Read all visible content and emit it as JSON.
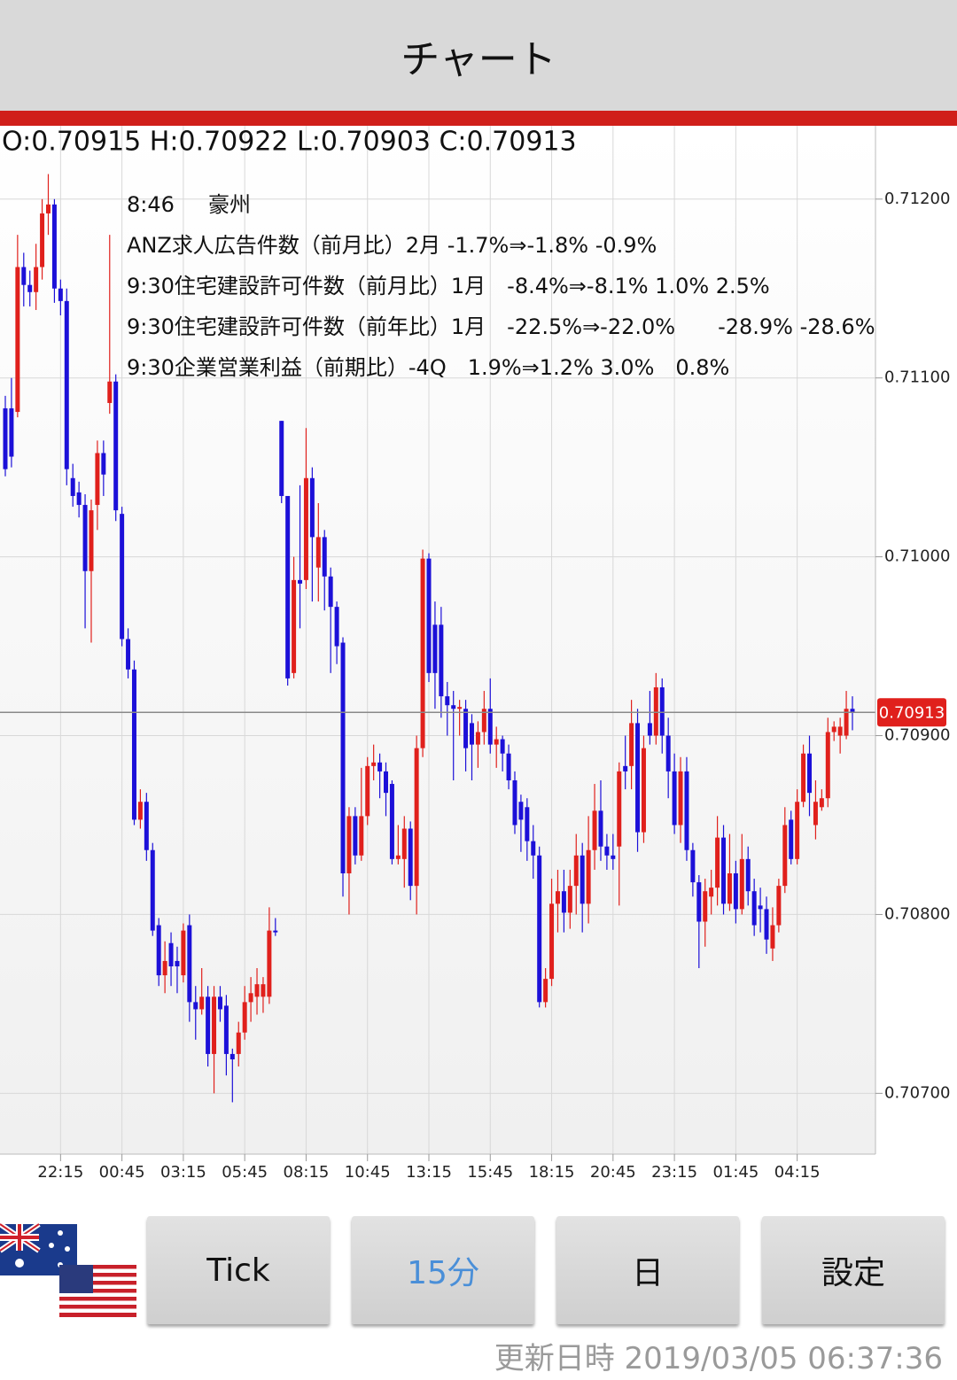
{
  "header": {
    "title": "チャート"
  },
  "chart_data": {
    "type": "candlestick",
    "ohlc_header": "O:0.70915 H:0.70922 L:0.70903 C:0.70913",
    "annotations": [
      "8:46     豪州",
      "ANZ求人広告件数（前月比）2月 -1.7%⇒-1.8% -0.9%",
      "9:30住宅建設許可件数（前月比）1月　-8.4%⇒-8.1% 1.0% 2.5%",
      "9:30住宅建設許可件数（前年比）1月　-22.5%⇒-22.0%　　-28.9% -28.6%",
      "9:30企業営業利益（前期比）-4Q　1.9%⇒1.2% 3.0%　0.8%"
    ],
    "up_color": "#e0201c",
    "down_color": "#1c10d8",
    "categories": [
      null,
      null,
      null,
      null,
      null,
      null,
      null,
      null,
      null,
      "22:15",
      null,
      null,
      null,
      null,
      null,
      null,
      null,
      null,
      null,
      "00:45",
      null,
      null,
      null,
      null,
      null,
      null,
      null,
      null,
      null,
      "03:15",
      null,
      null,
      null,
      null,
      null,
      null,
      null,
      null,
      null,
      "05:45",
      null,
      null,
      null,
      null,
      null,
      null,
      null,
      null,
      null,
      "08:15",
      null,
      null,
      null,
      null,
      null,
      null,
      null,
      null,
      null,
      "10:45",
      null,
      null,
      null,
      null,
      null,
      null,
      null,
      null,
      null,
      "13:15",
      null,
      null,
      null,
      null,
      null,
      null,
      null,
      null,
      null,
      "15:45",
      null,
      null,
      null,
      null,
      null,
      null,
      null,
      null,
      null,
      "18:15",
      null,
      null,
      null,
      null,
      null,
      null,
      null,
      null,
      null,
      "20:45",
      null,
      null,
      null,
      null,
      null,
      null,
      null,
      null,
      null,
      "23:15",
      null,
      null,
      null,
      null,
      null,
      null,
      null,
      null,
      null,
      "01:45",
      null,
      null,
      null,
      null,
      null,
      null,
      null,
      null,
      null,
      "04:15",
      null,
      null,
      null,
      null,
      null,
      null,
      null,
      null,
      null
    ],
    "open": [
      0.71083,
      0.71083,
      0.71081,
      0.71162,
      0.71152,
      0.71148,
      0.71162,
      0.71192,
      0.71197,
      0.7115,
      0.71143,
      0.71044,
      0.71036,
      0.71029,
      0.70992,
      0.71029,
      0.71058,
      0.71086,
      0.71098,
      0.71024,
      0.70954,
      0.70937,
      0.70853,
      0.70863,
      0.70836,
      0.70794,
      0.70766,
      0.70784,
      0.70774,
      0.70766,
      0.70794,
      0.70751,
      0.70747,
      0.70754,
      0.70722,
      0.70754,
      0.70749,
      0.70722,
      0.70722,
      0.70734,
      0.70751,
      0.70754,
      0.70754,
      0.70754,
      0.70791,
      0.71076,
      0.71034,
      0.70935,
      0.70987,
      0.70987,
      0.71044,
      0.70994,
      0.71011,
      0.70989,
      0.70972,
      0.70952,
      0.70823,
      0.70855,
      0.70833,
      0.70855,
      0.70883,
      0.70885,
      0.7088,
      0.70873,
      0.70831,
      0.70831,
      0.70848,
      0.70816,
      0.70893,
      0.70999,
      0.70962,
      0.70962,
      0.70922,
      0.70917,
      0.70915,
      0.70915,
      0.70907,
      0.70895,
      0.70902,
      0.70915,
      0.70895,
      0.70898,
      0.7089,
      0.70875,
      0.70863,
      0.7086,
      0.70841,
      0.70833,
      0.70751,
      0.70764,
      0.70806,
      0.70813,
      0.70801,
      0.70816,
      0.70833,
      0.70806,
      0.70836,
      0.70858,
      0.70838,
      0.70833,
      0.70838,
      0.70883,
      0.70883,
      0.70907,
      0.70846,
      0.70907,
      0.709,
      0.70927,
      0.709,
      0.7088,
      0.7085,
      0.7088,
      0.70836,
      0.70818,
      0.70796,
      0.7081,
      0.70815,
      0.70843,
      0.70806,
      0.70823,
      0.70803,
      0.70831,
      0.70813,
      0.70805,
      0.70803,
      0.70781,
      0.70794,
      0.70816,
      0.70853,
      0.70831,
      0.70863,
      0.7089,
      0.7085,
      0.7086,
      0.70865,
      0.70902,
      0.709,
      0.709,
      0.70915
    ],
    "high": [
      0.7109,
      0.711,
      0.7118,
      0.7117,
      0.7116,
      0.71175,
      0.712,
      0.71214,
      0.712,
      0.71155,
      0.7115,
      0.71052,
      0.71042,
      0.71035,
      0.71032,
      0.71065,
      0.71065,
      0.7118,
      0.71102,
      0.71028,
      0.7096,
      0.70942,
      0.7087,
      0.70868,
      0.7084,
      0.70798,
      0.70785,
      0.7079,
      0.70782,
      0.70795,
      0.708,
      0.7076,
      0.7077,
      0.7076,
      0.7076,
      0.7076,
      0.70755,
      0.70725,
      0.7074,
      0.7076,
      0.70765,
      0.7077,
      0.70765,
      0.70804,
      0.70798,
      0.71076,
      0.71034,
      0.71,
      0.7104,
      0.71072,
      0.7105,
      0.7103,
      0.71015,
      0.70994,
      0.70975,
      0.70955,
      0.7086,
      0.7086,
      0.70882,
      0.70888,
      0.70895,
      0.7089,
      0.70885,
      0.70875,
      0.7085,
      0.70855,
      0.70852,
      0.709,
      0.71004,
      0.71002,
      0.70975,
      0.70972,
      0.7093,
      0.70925,
      0.7092,
      0.7092,
      0.70912,
      0.70908,
      0.70925,
      0.70932,
      0.70905,
      0.709,
      0.70895,
      0.7088,
      0.70867,
      0.70865,
      0.7085,
      0.70838,
      0.7077,
      0.7082,
      0.70825,
      0.70825,
      0.70825,
      0.70845,
      0.7084,
      0.70855,
      0.70873,
      0.70875,
      0.70845,
      0.70845,
      0.70885,
      0.709,
      0.7092,
      0.70915,
      0.709,
      0.70925,
      0.70935,
      0.70932,
      0.7091,
      0.7089,
      0.70888,
      0.70888,
      0.7084,
      0.70822,
      0.7082,
      0.70825,
      0.70855,
      0.7085,
      0.70845,
      0.7083,
      0.70845,
      0.70838,
      0.7082,
      0.70815,
      0.7081,
      0.70804,
      0.7082,
      0.7086,
      0.70858,
      0.7087,
      0.70895,
      0.709,
      0.70875,
      0.7087,
      0.7091,
      0.70908,
      0.7091,
      0.70925,
      0.70922
    ],
    "low": [
      0.71045,
      0.7105,
      0.71078,
      0.7114,
      0.7114,
      0.71138,
      0.71155,
      0.7118,
      0.71142,
      0.71135,
      0.7104,
      0.71028,
      0.71022,
      0.7096,
      0.70952,
      0.71015,
      0.71034,
      0.7108,
      0.7102,
      0.7095,
      0.70932,
      0.7085,
      0.70848,
      0.7083,
      0.70788,
      0.7076,
      0.70756,
      0.7076,
      0.70756,
      0.70762,
      0.7074,
      0.7073,
      0.70744,
      0.70715,
      0.707,
      0.7074,
      0.7071,
      0.70695,
      0.70715,
      0.7073,
      0.7074,
      0.70744,
      0.70745,
      0.7075,
      0.70788,
      0.7103,
      0.70928,
      0.70932,
      0.7096,
      0.70982,
      0.70975,
      0.70975,
      0.7097,
      0.70935,
      0.7094,
      0.7081,
      0.708,
      0.70828,
      0.7083,
      0.7085,
      0.70875,
      0.70865,
      0.70855,
      0.70828,
      0.70828,
      0.70815,
      0.70808,
      0.708,
      0.70888,
      0.7093,
      0.70915,
      0.7091,
      0.709,
      0.70875,
      0.709,
      0.7088,
      0.70875,
      0.70882,
      0.70895,
      0.7089,
      0.70882,
      0.7088,
      0.7087,
      0.70845,
      0.70835,
      0.7083,
      0.7082,
      0.70748,
      0.70748,
      0.7076,
      0.7079,
      0.7079,
      0.70792,
      0.708,
      0.7079,
      0.70795,
      0.70825,
      0.7083,
      0.70825,
      0.70825,
      0.70805,
      0.7087,
      0.7087,
      0.70835,
      0.7084,
      0.70895,
      0.70895,
      0.7089,
      0.70865,
      0.70845,
      0.7084,
      0.7083,
      0.7081,
      0.7077,
      0.70782,
      0.708,
      0.70805,
      0.708,
      0.70802,
      0.70795,
      0.708,
      0.70805,
      0.70788,
      0.7079,
      0.70778,
      0.70774,
      0.7079,
      0.70812,
      0.70828,
      0.70828,
      0.7086,
      0.70855,
      0.70842,
      0.70858,
      0.7086,
      0.70897,
      0.7089,
      0.70898,
      0.70903
    ],
    "close": [
      0.71049,
      0.71056,
      0.71162,
      0.71152,
      0.71148,
      0.71162,
      0.71192,
      0.71197,
      0.7115,
      0.71143,
      0.71049,
      0.71034,
      0.71029,
      0.70992,
      0.71026,
      0.71058,
      0.71046,
      0.71098,
      0.71026,
      0.70954,
      0.70937,
      0.70853,
      0.70863,
      0.70836,
      0.70791,
      0.70766,
      0.70774,
      0.70771,
      0.70771,
      0.70791,
      0.70751,
      0.70747,
      0.70754,
      0.70722,
      0.70754,
      0.70747,
      0.70722,
      0.70719,
      0.70734,
      0.70751,
      0.70756,
      0.70761,
      0.70761,
      0.70791,
      0.7079,
      0.71034,
      0.70932,
      0.70987,
      0.70985,
      0.71044,
      0.71011,
      0.71011,
      0.70989,
      0.70972,
      0.7095,
      0.70823,
      0.70855,
      0.70833,
      0.70855,
      0.70883,
      0.70885,
      0.7088,
      0.70868,
      0.70831,
      0.70833,
      0.70848,
      0.70816,
      0.70893,
      0.70999,
      0.70935,
      0.70935,
      0.70922,
      0.70917,
      0.70915,
      0.70916,
      0.70893,
      0.70895,
      0.70902,
      0.70915,
      0.70895,
      0.70898,
      0.7089,
      0.70875,
      0.7085,
      0.70853,
      0.70841,
      0.70833,
      0.70751,
      0.70764,
      0.70806,
      0.70813,
      0.70801,
      0.70816,
      0.70833,
      0.70806,
      0.70836,
      0.70858,
      0.70838,
      0.70833,
      0.70831,
      0.7088,
      0.7088,
      0.70907,
      0.70846,
      0.70893,
      0.709,
      0.70927,
      0.709,
      0.7088,
      0.7085,
      0.7088,
      0.70836,
      0.70818,
      0.70796,
      0.70813,
      0.70815,
      0.70843,
      0.70806,
      0.70823,
      0.70803,
      0.70831,
      0.70813,
      0.70794,
      0.70803,
      0.70786,
      0.70794,
      0.70816,
      0.7085,
      0.70831,
      0.70863,
      0.7089,
      0.70868,
      0.70863,
      0.70865,
      0.70902,
      0.70905,
      0.70905,
      0.70915,
      0.70913
    ],
    "last_price": 0.70913,
    "price_line_color": "#8a8a8a",
    "ylim": [
      0.70666,
      0.71241
    ],
    "yticks": [
      {
        "value": 0.707,
        "label": "0.70700"
      },
      {
        "value": 0.708,
        "label": "0.70800"
      },
      {
        "value": 0.709,
        "label": "0.70900"
      },
      {
        "value": 0.71,
        "label": "0.71000"
      },
      {
        "value": 0.711,
        "label": "0.71100"
      },
      {
        "value": 0.712,
        "label": "0.71200"
      }
    ],
    "grid": true
  },
  "buttons": [
    "Tick",
    "15分",
    "日",
    "設定"
  ],
  "footer": {
    "updated": "更新日時 2019/03/05 06:37:36"
  }
}
